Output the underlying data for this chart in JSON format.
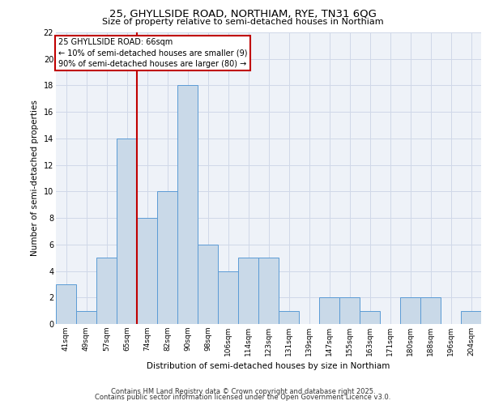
{
  "title_line1": "25, GHYLLSIDE ROAD, NORTHIAM, RYE, TN31 6QG",
  "title_line2": "Size of property relative to semi-detached houses in Northiam",
  "xlabel": "Distribution of semi-detached houses by size in Northiam",
  "ylabel": "Number of semi-detached properties",
  "categories": [
    "41sqm",
    "49sqm",
    "57sqm",
    "65sqm",
    "74sqm",
    "82sqm",
    "90sqm",
    "98sqm",
    "106sqm",
    "114sqm",
    "123sqm",
    "131sqm",
    "139sqm",
    "147sqm",
    "155sqm",
    "163sqm",
    "171sqm",
    "180sqm",
    "188sqm",
    "196sqm",
    "204sqm"
  ],
  "values": [
    3,
    1,
    5,
    14,
    8,
    10,
    18,
    6,
    4,
    5,
    5,
    1,
    0,
    2,
    2,
    1,
    0,
    2,
    2,
    0,
    1
  ],
  "bar_color": "#c9d9e8",
  "bar_edge_color": "#5b9bd5",
  "vline_x_index": 3,
  "vline_color": "#c00000",
  "annotation_text": "25 GHYLLSIDE ROAD: 66sqm\n← 10% of semi-detached houses are smaller (9)\n90% of semi-detached houses are larger (80) →",
  "annotation_box_color": "#c00000",
  "ylim": [
    0,
    22
  ],
  "yticks": [
    0,
    2,
    4,
    6,
    8,
    10,
    12,
    14,
    16,
    18,
    20,
    22
  ],
  "grid_color": "#d0d8e8",
  "bg_color": "#eef2f8",
  "footer_line1": "Contains HM Land Registry data © Crown copyright and database right 2025.",
  "footer_line2": "Contains public sector information licensed under the Open Government Licence v3.0."
}
